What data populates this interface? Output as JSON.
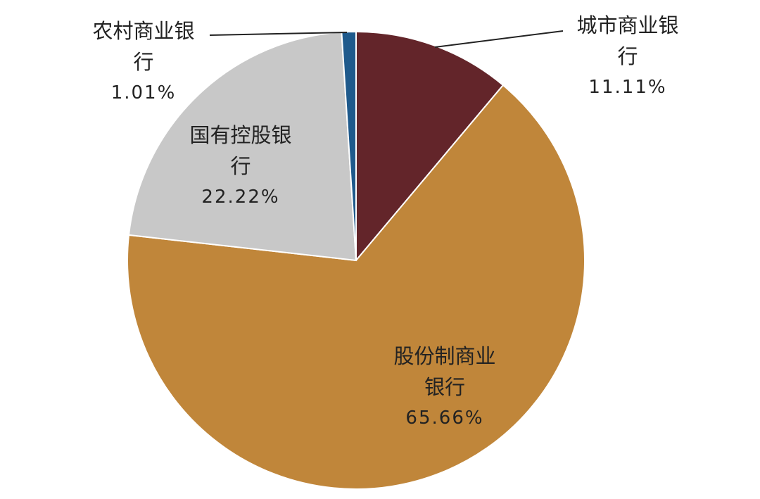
{
  "chart_data": {
    "type": "pie",
    "categories": [
      "城市商业银行",
      "股份制商业银行",
      "国有控股银行",
      "农村商业银行"
    ],
    "values": [
      11.11,
      65.66,
      22.22,
      1.01
    ],
    "value_labels": [
      "11.11%",
      "65.66%",
      "22.22%",
      "1.01%"
    ],
    "colors": [
      "#63252a",
      "#c0863a",
      "#c8c8c8",
      "#1f5a8c"
    ]
  }
}
